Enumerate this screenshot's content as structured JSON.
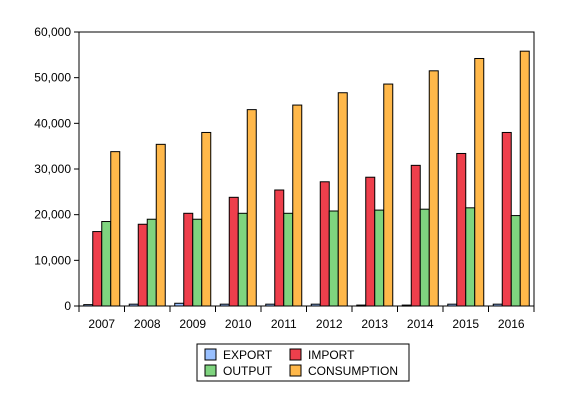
{
  "chart_data": {
    "type": "bar",
    "title": "",
    "xlabel": "",
    "ylabel": "",
    "categories": [
      "2007",
      "2008",
      "2009",
      "2010",
      "2011",
      "2012",
      "2013",
      "2014",
      "2015",
      "2016"
    ],
    "ylim": [
      0,
      60000
    ],
    "yticks": [
      0,
      10000,
      20000,
      30000,
      40000,
      50000,
      60000
    ],
    "ytick_labels": [
      "0",
      "10,000",
      "20,000",
      "30,000",
      "40,000",
      "50,000",
      "60,000"
    ],
    "grid": false,
    "legend_position": "bottom",
    "series": [
      {
        "name": "EXPORT",
        "color": "#99c0ff",
        "values": [
          300,
          400,
          600,
          400,
          400,
          400,
          200,
          200,
          400,
          400
        ]
      },
      {
        "name": "IMPORT",
        "color": "#ee3f4c",
        "values": [
          16300,
          17900,
          20300,
          23800,
          25400,
          27200,
          28200,
          30800,
          33400,
          38000
        ]
      },
      {
        "name": "OUTPUT",
        "color": "#7fd47f",
        "values": [
          18500,
          19000,
          19000,
          20300,
          20300,
          20800,
          21000,
          21200,
          21500,
          19800
        ]
      },
      {
        "name": "CONSUMPTION",
        "color": "#ffb84a",
        "values": [
          33800,
          35400,
          38000,
          43000,
          44000,
          46700,
          48600,
          51500,
          54200,
          55800
        ]
      }
    ]
  }
}
